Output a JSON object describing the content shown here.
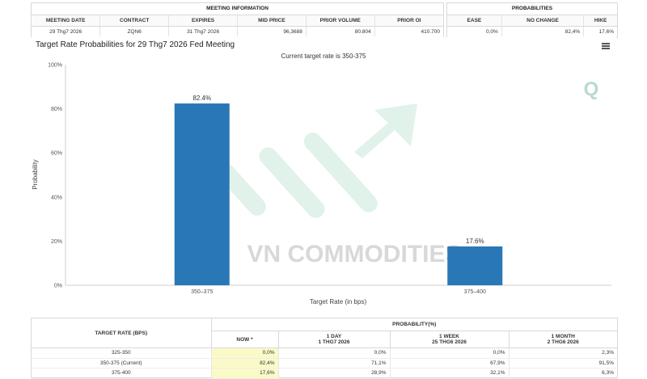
{
  "meeting_info": {
    "title": "MEETING INFORMATION",
    "headers": [
      "MEETING DATE",
      "CONTRACT",
      "EXPIRES",
      "MID PRICE",
      "PRIOR VOLUME",
      "PRIOR OI"
    ],
    "values": [
      "29 Thg7 2026",
      "ZQN6",
      "31 Thg7 2026",
      "96,3688",
      "80.804",
      "410.700"
    ]
  },
  "probabilities": {
    "title": "PROBABILITIES",
    "headers": [
      "EASE",
      "NO CHANGE",
      "HIKE"
    ],
    "values": [
      "0,0%",
      "82,4%",
      "17,6%"
    ]
  },
  "chart": {
    "title": "Target Rate Probabilities for 29 Thg7 2026 Fed Meeting",
    "subtitle": "Current target rate is 350-375",
    "watermark": "VN COMMODITIES",
    "menu_icon": "hamburger-menu-icon",
    "brand_icon": "quikstrike-q-logo"
  },
  "chart_data": {
    "type": "bar",
    "categories": [
      "350–375",
      "375–400"
    ],
    "values": [
      82.4,
      17.6
    ],
    "data_labels": [
      "82.4%",
      "17.6%"
    ],
    "xlabel": "Target Rate (in bps)",
    "ylabel": "Probability",
    "ylim": [
      0,
      100
    ],
    "y_ticks": [
      "0%",
      "20%",
      "40%",
      "60%",
      "80%",
      "100%"
    ],
    "bar_color": "#2a77b7",
    "grid": false
  },
  "prob_table": {
    "col_target": "TARGET RATE (BPS)",
    "col_group": "PROBABILITY(%)",
    "sub_headers": [
      {
        "line1": "NOW *",
        "line2": ""
      },
      {
        "line1": "1 DAY",
        "line2": "1 THG7 2026"
      },
      {
        "line1": "1 WEEK",
        "line2": "25 THG6 2026"
      },
      {
        "line1": "1 MONTH",
        "line2": "2 THG6 2026"
      }
    ],
    "rows": [
      {
        "rate": "325-350",
        "now": "0,0%",
        "day": "0,0%",
        "week": "0,0%",
        "month": "2,3%"
      },
      {
        "rate": "350-375 (Current)",
        "now": "82,4%",
        "day": "71,1%",
        "week": "67,9%",
        "month": "91,5%"
      },
      {
        "rate": "375-400",
        "now": "17,6%",
        "day": "28,9%",
        "week": "32,1%",
        "month": "6,3%"
      }
    ]
  }
}
